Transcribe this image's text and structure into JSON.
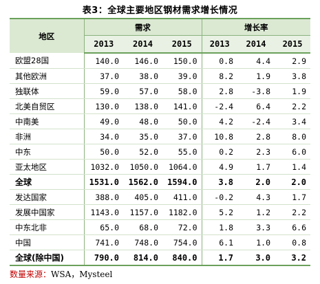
{
  "title": "表3：全球主要地区钢材需求增长情况",
  "header": {
    "region": "地区",
    "demand": "需求",
    "growth": "增长率",
    "years": [
      "2013",
      "2014",
      "2015",
      "2013",
      "2014",
      "2015"
    ]
  },
  "rows": [
    {
      "region": "欧盟28国",
      "d2013": "140.0",
      "d2014": "146.0",
      "d2015": "150.0",
      "g2013": "0.8",
      "g2014": "4.4",
      "g2015": "2.9",
      "bold": false
    },
    {
      "region": "其他欧洲",
      "d2013": "37.0",
      "d2014": "38.0",
      "d2015": "39.0",
      "g2013": "8.2",
      "g2014": "1.9",
      "g2015": "3.8",
      "bold": false
    },
    {
      "region": "独联体",
      "d2013": "59.0",
      "d2014": "57.0",
      "d2015": "58.0",
      "g2013": "2.8",
      "g2014": "-3.8",
      "g2015": "1.9",
      "bold": false
    },
    {
      "region": "北美自贸区",
      "d2013": "130.0",
      "d2014": "138.0",
      "d2015": "141.0",
      "g2013": "-2.4",
      "g2014": "6.4",
      "g2015": "2.2",
      "bold": false
    },
    {
      "region": "中南美",
      "d2013": "49.0",
      "d2014": "48.0",
      "d2015": "50.0",
      "g2013": "4.2",
      "g2014": "-2.4",
      "g2015": "3.4",
      "bold": false
    },
    {
      "region": "非洲",
      "d2013": "34.0",
      "d2014": "35.0",
      "d2015": "37.0",
      "g2013": "10.8",
      "g2014": "2.8",
      "g2015": "8.0",
      "bold": false
    },
    {
      "region": "中东",
      "d2013": "50.0",
      "d2014": "52.0",
      "d2015": "55.0",
      "g2013": "0.2",
      "g2014": "2.3",
      "g2015": "6.0",
      "bold": false
    },
    {
      "region": "亚太地区",
      "d2013": "1032.0",
      "d2014": "1050.0",
      "d2015": "1064.0",
      "g2013": "4.9",
      "g2014": "1.7",
      "g2015": "1.4",
      "bold": false
    },
    {
      "region": "全球",
      "d2013": "1531.0",
      "d2014": "1562.0",
      "d2015": "1594.0",
      "g2013": "3.8",
      "g2014": "2.0",
      "g2015": "2.0",
      "bold": true
    },
    {
      "region": "发达国家",
      "d2013": "388.0",
      "d2014": "405.0",
      "d2015": "411.0",
      "g2013": "-0.2",
      "g2014": "4.3",
      "g2015": "1.7",
      "bold": false
    },
    {
      "region": "发展中国家",
      "d2013": "1143.0",
      "d2014": "1157.0",
      "d2015": "1182.0",
      "g2013": "5.2",
      "g2014": "1.2",
      "g2015": "2.2",
      "bold": false
    },
    {
      "region": "中东北非",
      "d2013": "65.0",
      "d2014": "68.0",
      "d2015": "72.0",
      "g2013": "1.8",
      "g2014": "3.3",
      "g2015": "6.6",
      "bold": false
    },
    {
      "region": "中国",
      "d2013": "741.0",
      "d2014": "748.0",
      "d2015": "754.0",
      "g2013": "6.1",
      "g2014": "1.0",
      "g2015": "0.8",
      "bold": false
    },
    {
      "region": "全球(除中国)",
      "d2013": "790.0",
      "d2014": "814.0",
      "d2015": "840.0",
      "g2013": "1.7",
      "g2014": "3.0",
      "g2015": "3.2",
      "bold": true
    }
  ],
  "source": {
    "label": "数量来源：",
    "value": "WSA，Mysteel"
  },
  "colors": {
    "header_bg": "#dbe9d3",
    "subheader_bg": "#e8f1e3",
    "rule": "#6aa05a",
    "source_label": "#c00000"
  }
}
